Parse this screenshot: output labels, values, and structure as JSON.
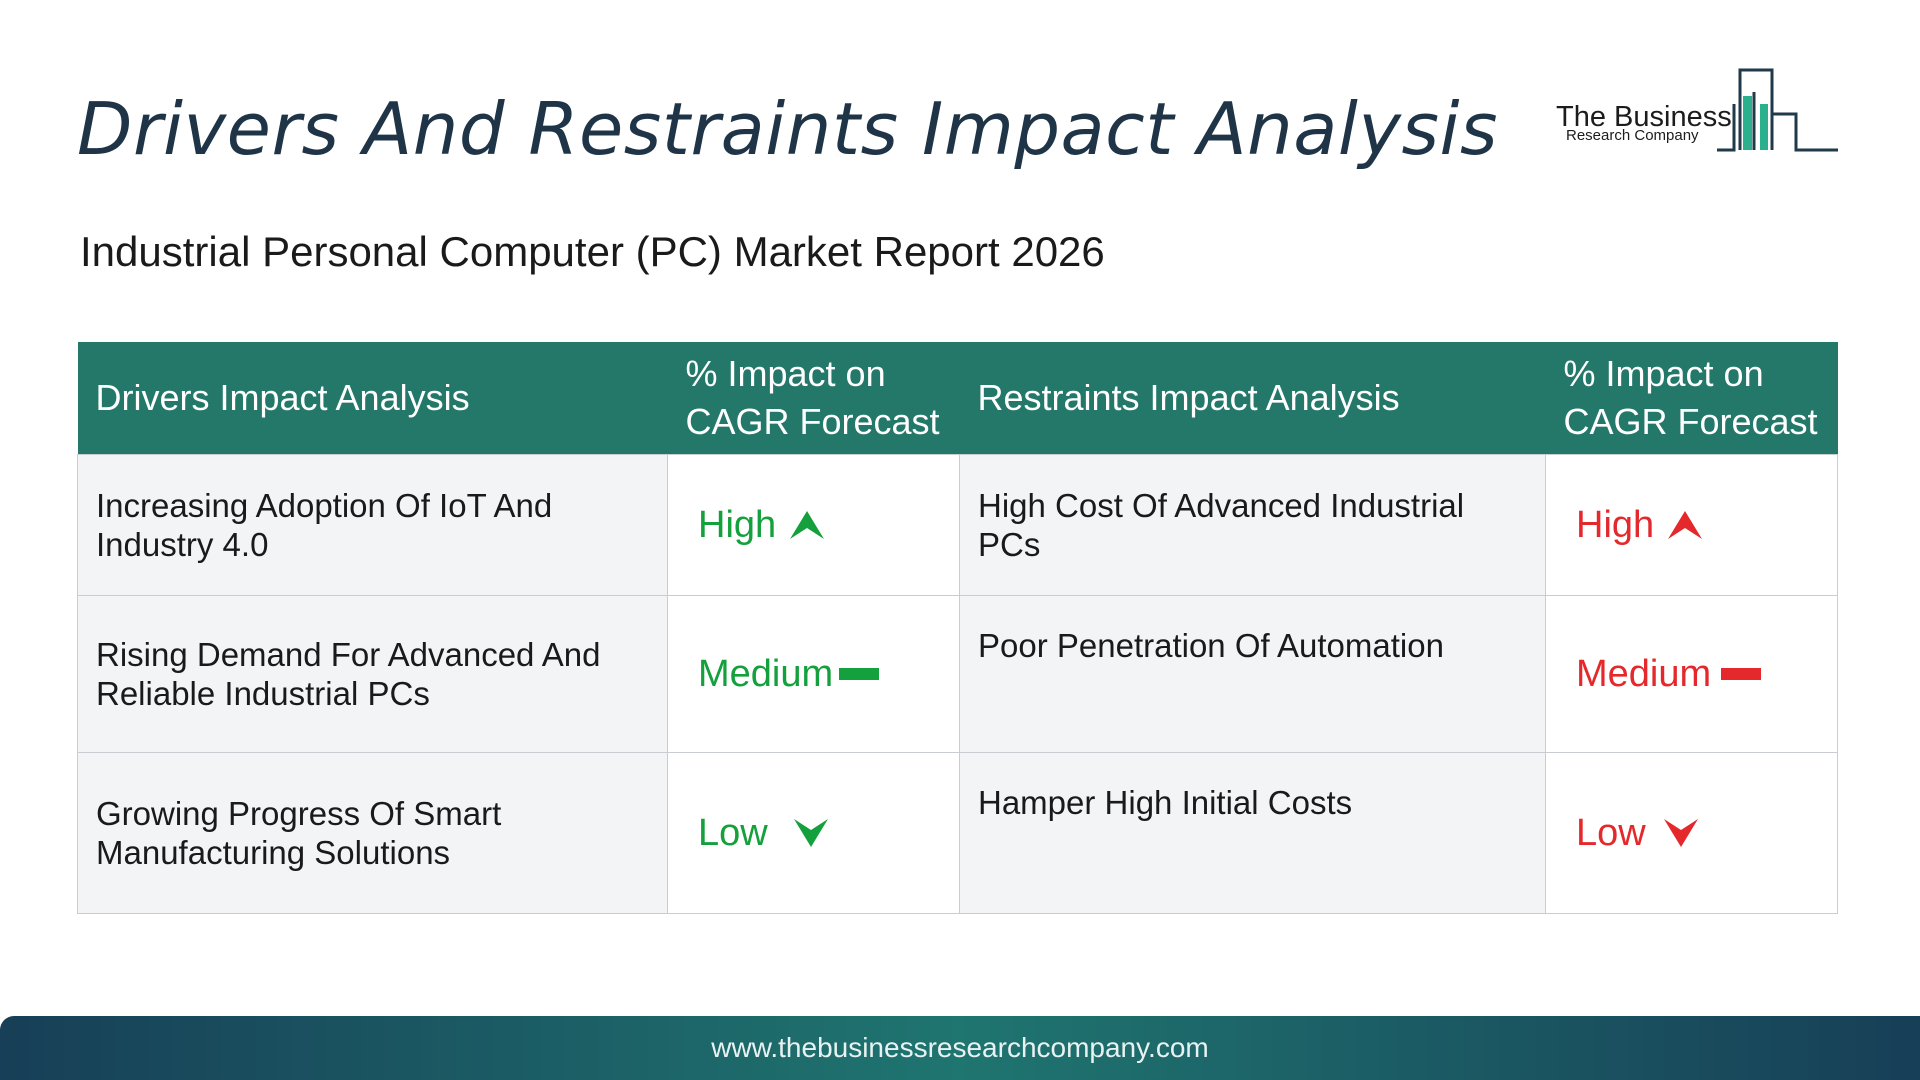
{
  "header": {
    "title": "Drivers And Restraints Impact Analysis",
    "subtitle": "Industrial Personal Computer (PC) Market Report 2026"
  },
  "logo": {
    "line1": "The Business",
    "line2": "Research Company",
    "icon": "bar-chart-buildings-icon"
  },
  "table": {
    "headers": {
      "drivers": "Drivers Impact Analysis",
      "drivers_impact": "% Impact on CAGR Forecast",
      "restraints": "Restraints Impact Analysis",
      "restraints_impact": "% Impact on CAGR Forecast"
    },
    "rows": [
      {
        "driver": "Increasing Adoption Of IoT And Industry 4.0",
        "driver_impact": "High",
        "driver_icon": "arrow-up-icon",
        "restraint": "High Cost Of Advanced Industrial PCs",
        "restraint_impact": "High",
        "restraint_icon": "arrow-up-icon"
      },
      {
        "driver": "Rising Demand For Advanced And Reliable Industrial PCs",
        "driver_impact": "Medium",
        "driver_icon": "dash-icon",
        "restraint": "Poor Penetration Of Automation",
        "restraint_impact": "Medium",
        "restraint_icon": "dash-icon"
      },
      {
        "driver": "Growing Progress Of Smart Manufacturing Solutions",
        "driver_impact": "Low",
        "driver_icon": "arrow-down-icon",
        "restraint": "Hamper High Initial Costs",
        "restraint_impact": "Low",
        "restraint_icon": "arrow-down-icon"
      }
    ]
  },
  "colors": {
    "header_bg": "#24786a",
    "driver_impact": "#14a03c",
    "restraint_impact": "#e4282c",
    "title": "#1f3447"
  },
  "footer": {
    "url": "www.thebusinessresearchcompany.com"
  }
}
